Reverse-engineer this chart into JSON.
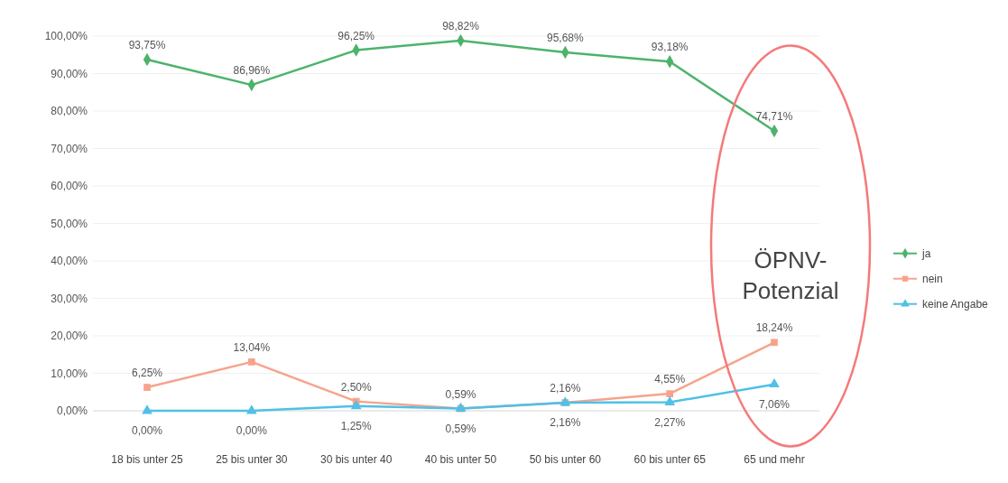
{
  "chart_data": {
    "type": "line",
    "categories": [
      "18 bis unter 25",
      "25 bis unter 30",
      "30 bis unter 40",
      "40 bis unter 50",
      "50 bis unter 60",
      "60 bis unter 65",
      "65 und mehr"
    ],
    "series": [
      {
        "name": "ja",
        "color": "#4db36b",
        "marker": "diamond",
        "values": [
          93.75,
          86.96,
          96.25,
          98.82,
          95.68,
          93.18,
          74.71
        ],
        "value_labels": [
          "93,75%",
          "86,96%",
          "96,25%",
          "98,82%",
          "95,68%",
          "93,18%",
          "74,71%"
        ]
      },
      {
        "name": "nein",
        "color": "#f7a38c",
        "marker": "square",
        "values": [
          6.25,
          13.04,
          2.5,
          0.59,
          2.16,
          4.55,
          18.24
        ],
        "value_labels": [
          "6,25%",
          "13,04%",
          "2,50%",
          "0,59%",
          "2,16%",
          "4,55%",
          "18,24%"
        ]
      },
      {
        "name": "keine Angabe",
        "color": "#4fc0e6",
        "marker": "triangle",
        "values": [
          0,
          0,
          1.25,
          0.59,
          2.16,
          2.27,
          7.06
        ],
        "value_labels": [
          "0,00%",
          "0,00%",
          "1,25%",
          "0,59%",
          "2,16%",
          "2,27%",
          "7,06%"
        ]
      }
    ],
    "ylim": [
      0,
      100
    ],
    "yticks": [
      {
        "value": 0,
        "label": "0,00%"
      },
      {
        "value": 10,
        "label": "10,00%"
      },
      {
        "value": 20,
        "label": "20,00%"
      },
      {
        "value": 30,
        "label": "30,00%"
      },
      {
        "value": 40,
        "label": "40,00%"
      },
      {
        "value": 50,
        "label": "50,00%"
      },
      {
        "value": 60,
        "label": "60,00%"
      },
      {
        "value": 70,
        "label": "70,00%"
      },
      {
        "value": 80,
        "label": "80,00%"
      },
      {
        "value": 90,
        "label": "90,00%"
      },
      {
        "value": 100,
        "label": "100,00%"
      }
    ],
    "grid": "y",
    "legend": "right",
    "line_style": "solid",
    "annotations": [
      "ÖPNV-Potenzial"
    ]
  }
}
